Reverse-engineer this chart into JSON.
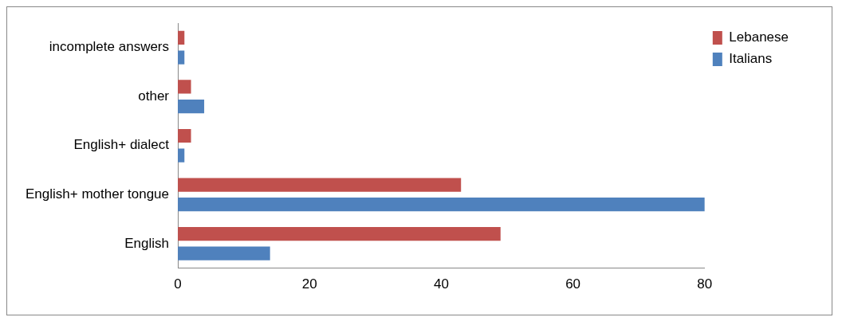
{
  "chart_data": {
    "type": "bar",
    "orientation": "horizontal",
    "categories": [
      "incomplete answers",
      "other",
      "English+ dialect",
      "English+ mother tongue",
      "English"
    ],
    "series": [
      {
        "name": "Lebanese",
        "color": "#c0504d",
        "values": [
          1,
          2,
          2,
          43,
          49
        ]
      },
      {
        "name": "Italians",
        "color": "#4f81bd",
        "values": [
          1,
          4,
          1,
          80,
          14
        ]
      }
    ],
    "xlim": [
      0,
      80
    ],
    "xticks": [
      0,
      20,
      40,
      60,
      80
    ],
    "grid": false,
    "legend": "top right"
  }
}
